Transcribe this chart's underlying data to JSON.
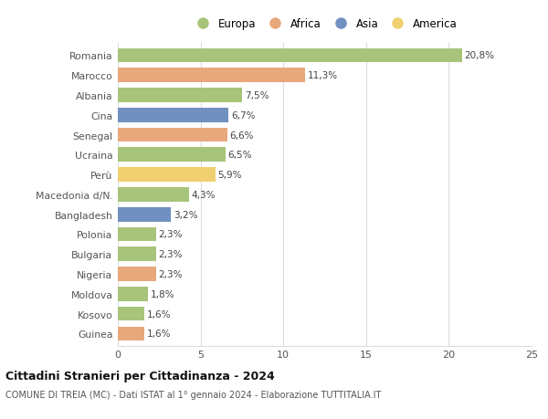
{
  "countries": [
    "Romania",
    "Marocco",
    "Albania",
    "Cina",
    "Senegal",
    "Ucraina",
    "Perù",
    "Macedonia d/N.",
    "Bangladesh",
    "Polonia",
    "Bulgaria",
    "Nigeria",
    "Moldova",
    "Kosovo",
    "Guinea"
  ],
  "values": [
    20.8,
    11.3,
    7.5,
    6.7,
    6.6,
    6.5,
    5.9,
    4.3,
    3.2,
    2.3,
    2.3,
    2.3,
    1.8,
    1.6,
    1.6
  ],
  "labels": [
    "20,8%",
    "11,3%",
    "7,5%",
    "6,7%",
    "6,6%",
    "6,5%",
    "5,9%",
    "4,3%",
    "3,2%",
    "2,3%",
    "2,3%",
    "2,3%",
    "1,8%",
    "1,6%",
    "1,6%"
  ],
  "continents": [
    "Europa",
    "Africa",
    "Europa",
    "Asia",
    "Africa",
    "Europa",
    "America",
    "Europa",
    "Asia",
    "Europa",
    "Europa",
    "Africa",
    "Europa",
    "Europa",
    "Africa"
  ],
  "colors": {
    "Europa": "#a8c47a",
    "Africa": "#e8a87c",
    "Asia": "#7090c0",
    "America": "#f0d070"
  },
  "legend_order": [
    "Europa",
    "Africa",
    "Asia",
    "America"
  ],
  "title": "Cittadini Stranieri per Cittadinanza - 2024",
  "subtitle": "COMUNE DI TREIA (MC) - Dati ISTAT al 1° gennaio 2024 - Elaborazione TUTTITALIA.IT",
  "xlim": [
    0,
    25
  ],
  "xticks": [
    0,
    5,
    10,
    15,
    20,
    25
  ],
  "bg_color": "#ffffff",
  "grid_color": "#dddddd"
}
